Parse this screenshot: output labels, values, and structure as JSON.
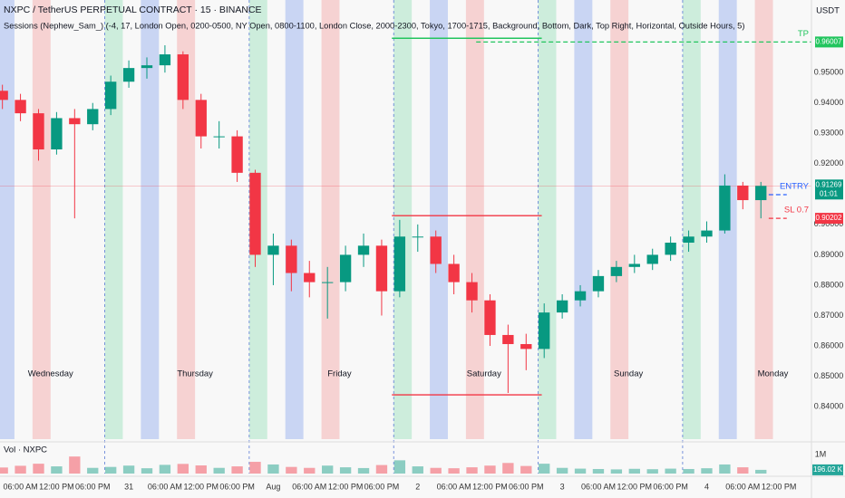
{
  "chart_data": {
    "type": "candlestick",
    "title": "NXPC / TetherUS PERPETUAL CONTRACT · 15 · BINANCE",
    "subtitle": "Sessions (Nephew_Sam_) (-4, 17, London Open, 0200-0500, NY Open, 0800-1100, London Close, 2000-2300, Tokyo, 1700-1715, Background, Bottom, Dark, Top Right, Horizontal, Outside Hours, 5)",
    "currency": "USDT",
    "up_color": "#089981",
    "down_color": "#f23645",
    "xlim": [
      2.6,
      137.4
    ],
    "ylim": [
      0.8293,
      0.9739
    ],
    "yticks": [
      {
        "value": 0.84,
        "label": "0.84000"
      },
      {
        "value": 0.85,
        "label": "0.85000"
      },
      {
        "value": 0.86,
        "label": "0.86000"
      },
      {
        "value": 0.87,
        "label": "0.87000"
      },
      {
        "value": 0.88,
        "label": "0.88000"
      },
      {
        "value": 0.89,
        "label": "0.89000"
      },
      {
        "value": 0.9,
        "label": "0.90000"
      },
      {
        "value": 0.92,
        "label": "0.92000"
      },
      {
        "value": 0.93,
        "label": "0.93000"
      },
      {
        "value": 0.94,
        "label": "0.94000"
      },
      {
        "value": 0.95,
        "label": "0.95000"
      }
    ],
    "xticks": [
      {
        "value": 6,
        "label": "06:00 AM"
      },
      {
        "value": 12,
        "label": "12:00 PM"
      },
      {
        "value": 18,
        "label": "06:00 PM"
      },
      {
        "value": 24,
        "label": "31"
      },
      {
        "value": 30,
        "label": "06:00 AM"
      },
      {
        "value": 36,
        "label": "12:00 PM"
      },
      {
        "value": 42,
        "label": "06:00 PM"
      },
      {
        "value": 48,
        "label": "Aug"
      },
      {
        "value": 54,
        "label": "06:00 AM"
      },
      {
        "value": 60,
        "label": "12:00 PM"
      },
      {
        "value": 66,
        "label": "06:00 PM"
      },
      {
        "value": 72,
        "label": "2"
      },
      {
        "value": 78,
        "label": "06:00 AM"
      },
      {
        "value": 84,
        "label": "12:00 PM"
      },
      {
        "value": 90,
        "label": "06:00 PM"
      },
      {
        "value": 96,
        "label": "3"
      },
      {
        "value": 102,
        "label": "06:00 AM"
      },
      {
        "value": 108,
        "label": "12:00 PM"
      },
      {
        "value": 114,
        "label": "06:00 PM"
      },
      {
        "value": 120,
        "label": "4"
      },
      {
        "value": 126,
        "label": "06:00 AM"
      },
      {
        "value": 132,
        "label": "12:00 PM"
      }
    ],
    "sessions": [
      {
        "color": "#b9c9f2",
        "start": 2,
        "end": 5
      },
      {
        "color": "#f6c6c6",
        "start": 8,
        "end": 11
      },
      {
        "color": "#bfe9d3",
        "start": 20,
        "end": 23
      }
    ],
    "day_lines": [
      20,
      44,
      68,
      92,
      116
    ],
    "days": [
      {
        "name": "Wednesday",
        "x": 11
      },
      {
        "name": "Thursday",
        "x": 35
      },
      {
        "name": "Friday",
        "x": 59
      },
      {
        "name": "Saturday",
        "x": 83
      },
      {
        "name": "Sunday",
        "x": 107
      },
      {
        "name": "Monday",
        "x": 131
      }
    ],
    "x": [
      3,
      6,
      9,
      12,
      15,
      18,
      21,
      24,
      27,
      30,
      33,
      36,
      39,
      42,
      45,
      48,
      51,
      54,
      57,
      60,
      63,
      66,
      69,
      72,
      75,
      78,
      81,
      84,
      87,
      90,
      93,
      96,
      99,
      102,
      105,
      108,
      111,
      114,
      117,
      120,
      123,
      126,
      129
    ],
    "open": [
      0.944,
      0.941,
      0.9366,
      0.9247,
      0.935,
      0.933,
      0.938,
      0.947,
      0.9515,
      0.9524,
      0.956,
      0.941,
      0.929,
      0.929,
      0.917,
      0.89,
      0.893,
      0.884,
      0.881,
      0.881,
      0.89,
      0.893,
      0.878,
      0.896,
      0.896,
      0.887,
      0.881,
      0.875,
      0.8636,
      0.8606,
      0.859,
      0.871,
      0.875,
      0.878,
      0.883,
      0.886,
      0.887,
      0.89,
      0.894,
      0.896,
      0.898,
      0.9128,
      0.908
    ],
    "high": [
      0.946,
      0.943,
      0.938,
      0.937,
      0.938,
      0.94,
      0.949,
      0.954,
      0.955,
      0.959,
      0.957,
      0.943,
      0.934,
      0.931,
      0.918,
      0.897,
      0.895,
      0.888,
      0.886,
      0.893,
      0.897,
      0.895,
      0.9015,
      0.9,
      0.898,
      0.89,
      0.884,
      0.877,
      0.867,
      0.864,
      0.874,
      0.877,
      0.88,
      0.885,
      0.888,
      0.89,
      0.892,
      0.896,
      0.898,
      0.901,
      0.9165,
      0.914,
      0.914
    ],
    "low": [
      0.938,
      0.934,
      0.921,
      0.923,
      0.902,
      0.931,
      0.936,
      0.945,
      0.948,
      0.95,
      0.938,
      0.925,
      0.925,
      0.914,
      0.886,
      0.88,
      0.878,
      0.876,
      0.869,
      0.878,
      0.886,
      0.87,
      0.876,
      0.891,
      0.884,
      0.877,
      0.871,
      0.86,
      0.8445,
      0.852,
      0.856,
      0.869,
      0.873,
      0.876,
      0.881,
      0.884,
      0.885,
      0.888,
      0.891,
      0.894,
      0.897,
      0.905,
      0.902
    ],
    "close": [
      0.941,
      0.9366,
      0.9247,
      0.935,
      0.933,
      0.938,
      0.947,
      0.9515,
      0.9524,
      0.956,
      0.941,
      0.929,
      0.929,
      0.917,
      0.89,
      0.893,
      0.884,
      0.881,
      0.881,
      0.89,
      0.893,
      0.878,
      0.896,
      0.896,
      0.887,
      0.881,
      0.875,
      0.8636,
      0.8606,
      0.859,
      0.871,
      0.875,
      0.878,
      0.883,
      0.886,
      0.887,
      0.89,
      0.894,
      0.896,
      0.898,
      0.9128,
      0.908,
      0.9127
    ],
    "ranges": [
      {
        "value": 0.9613,
        "start": 67.7,
        "end": 92.6,
        "color": "#22c55e"
      },
      {
        "value": 0.9029,
        "start": 67.7,
        "end": 92.6,
        "color": "#f23645"
      },
      {
        "value": 0.8439,
        "start": 67.7,
        "end": 92.6,
        "color": "#f23645"
      }
    ],
    "levels": [
      {
        "label": "TP",
        "value": 0.96007,
        "start": 81.7,
        "end": 137.4,
        "color": "#22c55e",
        "tag": true
      },
      {
        "label": "ENTRY",
        "value": 0.9098,
        "start": 130.3,
        "end": 133.3,
        "color": "#2962ff",
        "tag": false
      },
      {
        "label": "SL 0.7",
        "value": 0.90202,
        "start": 130.3,
        "end": 133.3,
        "color": "#f23645",
        "tag": true
      }
    ],
    "last_price": 0.91269,
    "countdown": "01:01",
    "volume": {
      "label": "Vol · NXPC",
      "ylim": [
        0,
        1100000
      ],
      "yticks": [
        {
          "value": 1000000,
          "label": "1M"
        }
      ],
      "values": [
        320000,
        410000,
        520000,
        380000,
        900000,
        300000,
        350000,
        420000,
        280000,
        460000,
        510000,
        430000,
        300000,
        380000,
        620000,
        480000,
        350000,
        300000,
        420000,
        330000,
        290000,
        450000,
        700000,
        380000,
        300000,
        280000,
        330000,
        420000,
        560000,
        400000,
        520000,
        300000,
        260000,
        240000,
        220000,
        250000,
        230000,
        260000,
        240000,
        280000,
        480000,
        330000,
        196020
      ],
      "last_label": "196.02 K"
    }
  }
}
